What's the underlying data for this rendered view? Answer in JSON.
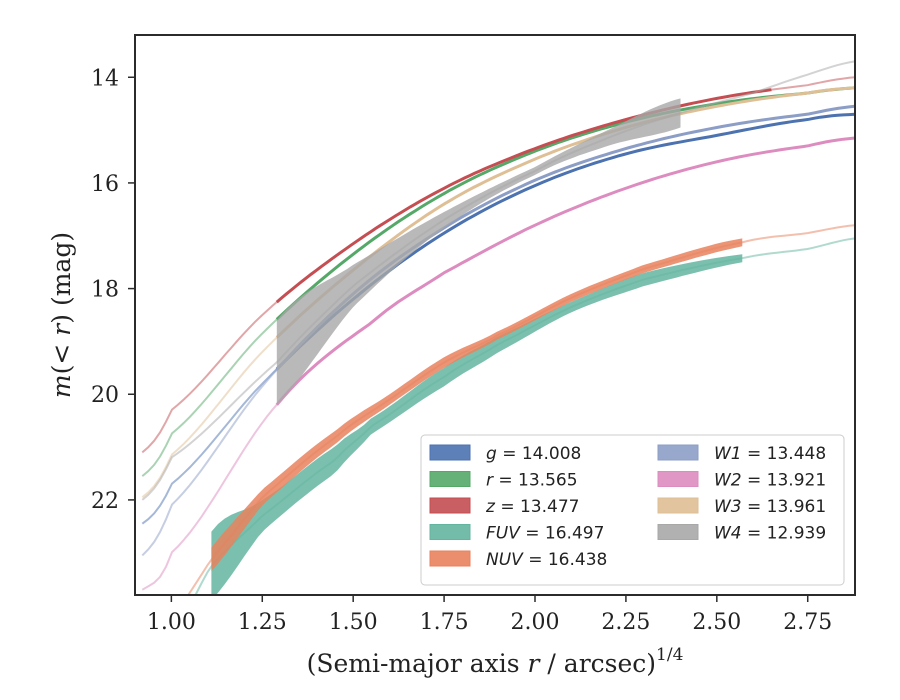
{
  "chart_data": {
    "type": "area",
    "title": "",
    "xlabel": "(Semi-major axis r / arcsec)^1/4",
    "xlabel_parts": {
      "main": "(Semi-major axis ",
      "var": "r",
      "rest": " / arcsec)",
      "sup": "1/4"
    },
    "ylabel": "m(<r) (mag)",
    "ylabel_parts": {
      "var": "m",
      "paren_open": "(",
      "lt": "< ",
      "r": "r",
      "paren_close": ")",
      "unit": " (mag)"
    },
    "xlim": [
      0.9,
      2.88
    ],
    "ylim": [
      23.8,
      13.2
    ],
    "y_inverted": true,
    "xticks": [
      1.0,
      1.25,
      1.5,
      1.75,
      2.0,
      2.25,
      2.5,
      2.75
    ],
    "xtick_labels": [
      "1.00",
      "1.25",
      "1.50",
      "1.75",
      "2.00",
      "2.25",
      "2.50",
      "2.75"
    ],
    "yticks": [
      14,
      16,
      18,
      20,
      22
    ],
    "ytick_labels": [
      "14",
      "16",
      "18",
      "20",
      "22"
    ],
    "grid": false,
    "legend_position": "lower-right",
    "series": [
      {
        "name": "g",
        "label_var": "g",
        "label_value": " = 14.008",
        "color": "#4c72b0",
        "x_start": 1.29,
        "x_end": 2.88,
        "width": 0.06,
        "x": [
          0.92,
          1.0,
          1.25,
          1.5,
          1.75,
          2.0,
          2.25,
          2.5,
          2.75,
          2.88
        ],
        "y": [
          22.45,
          21.7,
          19.8,
          18.2,
          16.95,
          16.05,
          15.45,
          15.1,
          14.8,
          14.7
        ]
      },
      {
        "name": "r",
        "label_var": "r",
        "label_value": " = 13.565",
        "color": "#55a868",
        "x_start": 1.29,
        "x_end": 2.88,
        "width": 0.06,
        "x": [
          0.92,
          1.0,
          1.25,
          1.5,
          1.75,
          2.0,
          2.25,
          2.5,
          2.75,
          2.88
        ],
        "y": [
          21.55,
          20.75,
          18.85,
          17.35,
          16.2,
          15.4,
          14.85,
          14.5,
          14.3,
          14.2
        ]
      },
      {
        "name": "z",
        "label_var": "z",
        "label_value": " = 13.477",
        "color": "#c44e52",
        "x_start": 1.29,
        "x_end": 2.65,
        "width": 0.06,
        "x": [
          0.92,
          1.0,
          1.25,
          1.5,
          1.75,
          2.0,
          2.25,
          2.5,
          2.75,
          2.88
        ],
        "y": [
          21.1,
          20.3,
          18.5,
          17.15,
          16.1,
          15.35,
          14.8,
          14.4,
          14.15,
          14.0
        ]
      },
      {
        "name": "FUV",
        "label_var": "FUV",
        "label_value": " = 16.497",
        "color": "#64b5a0",
        "x_start": 1.11,
        "x_end": 2.57,
        "band": true,
        "x": [
          0.92,
          1.0,
          1.11,
          1.25,
          1.45,
          1.55,
          1.75,
          1.9,
          2.1,
          2.3,
          2.57,
          2.75,
          2.88
        ],
        "y_lower": [
          25.0,
          24.6,
          23.9,
          22.6,
          21.5,
          20.75,
          19.85,
          19.2,
          18.45,
          17.95,
          17.5,
          17.25,
          17.05
        ],
        "y_upper": [
          25.0,
          24.6,
          22.6,
          22.0,
          21.0,
          20.45,
          19.5,
          18.9,
          18.25,
          17.7,
          17.35,
          17.25,
          17.05
        ]
      },
      {
        "name": "NUV",
        "label_var": "NUV",
        "label_value": " = 16.438",
        "color": "#e8825e",
        "x_start": 1.11,
        "x_end": 2.57,
        "band": true,
        "x": [
          0.92,
          1.0,
          1.11,
          1.25,
          1.45,
          1.6,
          1.75,
          1.9,
          2.1,
          2.3,
          2.57,
          2.75,
          2.88
        ],
        "y_lower": [
          24.6,
          24.2,
          23.35,
          22.1,
          20.95,
          20.2,
          19.5,
          18.95,
          18.25,
          17.7,
          17.2,
          16.95,
          16.8
        ],
        "y_upper": [
          24.6,
          24.2,
          22.9,
          21.8,
          20.7,
          20.0,
          19.3,
          18.8,
          18.1,
          17.55,
          17.05,
          16.95,
          16.8
        ]
      },
      {
        "name": "W1",
        "label_var": "W1",
        "label_value": " = 13.448",
        "color": "#8c9ec6",
        "x_start": 1.29,
        "x_end": 2.88,
        "width": 0.06,
        "x": [
          0.92,
          1.0,
          1.25,
          1.5,
          1.75,
          2.0,
          2.25,
          2.5,
          2.75,
          2.88
        ],
        "y": [
          23.05,
          22.1,
          19.85,
          18.1,
          16.85,
          15.95,
          15.35,
          14.95,
          14.7,
          14.55
        ]
      },
      {
        "name": "W2",
        "label_var": "W2",
        "label_value": " = 13.921",
        "color": "#dd8cc0",
        "x_start": 1.29,
        "x_end": 2.88,
        "width": 0.06,
        "x": [
          0.92,
          1.0,
          1.29,
          1.55,
          1.75,
          2.0,
          2.25,
          2.5,
          2.75,
          2.88
        ],
        "y": [
          23.7,
          23.0,
          20.2,
          18.65,
          17.7,
          16.8,
          16.1,
          15.6,
          15.3,
          15.15
        ]
      },
      {
        "name": "W3",
        "label_var": "W3",
        "label_value": " = 13.961",
        "color": "#dfbf95",
        "x_start": 1.29,
        "x_end": 2.88,
        "width": 0.06,
        "x": [
          0.92,
          1.0,
          1.25,
          1.5,
          1.75,
          2.0,
          2.25,
          2.5,
          2.75,
          2.88
        ],
        "y": [
          21.95,
          21.15,
          19.2,
          17.65,
          16.4,
          15.55,
          14.95,
          14.55,
          14.3,
          14.2
        ]
      },
      {
        "name": "W4",
        "label_var": "W4",
        "label_value": " = 12.939",
        "color": "#a8a8a8",
        "x_start": 1.29,
        "x_end": 2.4,
        "band": true,
        "x": [
          0.92,
          1.0,
          1.29,
          1.5,
          1.75,
          2.0,
          2.2,
          2.4,
          2.6,
          2.75,
          2.88
        ],
        "y_lower": [
          22.0,
          21.2,
          20.2,
          18.35,
          16.85,
          15.85,
          15.3,
          14.95,
          14.3,
          13.95,
          13.7
        ],
        "y_upper": [
          22.0,
          21.2,
          18.6,
          17.55,
          16.55,
          15.7,
          15.0,
          14.4,
          14.3,
          13.95,
          13.7
        ]
      }
    ]
  }
}
